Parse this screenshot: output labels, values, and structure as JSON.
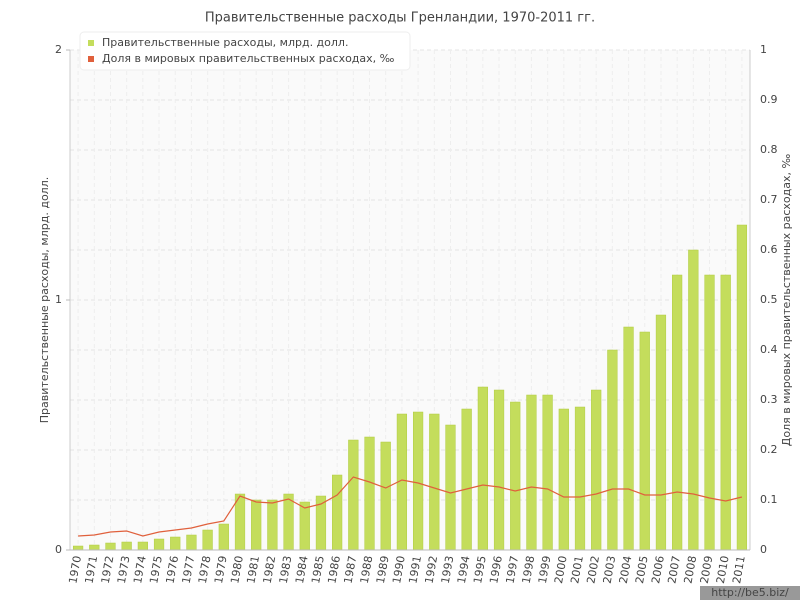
{
  "chart_data": {
    "type": "bar-line",
    "title": "Правительственные расходы Гренландии, 1970-2011 гг.",
    "y_label": "Правительственные расходы, млрд. долл.",
    "y2_label": "Доля в мировых правительственных расходах, ‰",
    "watermark": "http://be5.biz/",
    "categories": [
      "1970",
      "1971",
      "1972",
      "1973",
      "1974",
      "1975",
      "1976",
      "1977",
      "1978",
      "1979",
      "1980",
      "1981",
      "1982",
      "1983",
      "1984",
      "1985",
      "1986",
      "1987",
      "1988",
      "1989",
      "1990",
      "1991",
      "1992",
      "1993",
      "1994",
      "1995",
      "1996",
      "1997",
      "1998",
      "1999",
      "2000",
      "2001",
      "2002",
      "2003",
      "2004",
      "2005",
      "2006",
      "2007",
      "2008",
      "2009",
      "2010",
      "2011"
    ],
    "series": [
      {
        "name": "Правительственные расходы, млрд. долл.",
        "color": "#c4dd5c",
        "kind": "bar",
        "values": [
          0.016,
          0.02,
          0.028,
          0.032,
          0.032,
          0.044,
          0.052,
          0.06,
          0.08,
          0.104,
          0.224,
          0.2,
          0.2,
          0.224,
          0.192,
          0.216,
          0.3,
          0.44,
          0.452,
          0.432,
          0.544,
          0.552,
          0.544,
          0.5,
          0.564,
          0.652,
          0.64,
          0.592,
          0.62,
          0.62,
          0.564,
          0.572,
          0.64,
          0.8,
          0.892,
          0.872,
          0.94,
          1.1,
          1.2,
          1.1,
          1.1,
          1.3
        ]
      },
      {
        "name": "Доля в мировых правительственных расходах, ‰",
        "color": "#e0603c",
        "kind": "line",
        "axis": "y2",
        "values": [
          0.028,
          0.03,
          0.036,
          0.038,
          0.028,
          0.036,
          0.04,
          0.044,
          0.052,
          0.058,
          0.108,
          0.096,
          0.094,
          0.102,
          0.084,
          0.092,
          0.11,
          0.146,
          0.136,
          0.124,
          0.14,
          0.134,
          0.124,
          0.114,
          0.122,
          0.13,
          0.126,
          0.118,
          0.126,
          0.122,
          0.106,
          0.106,
          0.112,
          0.122,
          0.122,
          0.11,
          0.11,
          0.116,
          0.112,
          0.104,
          0.098,
          0.106
        ]
      }
    ],
    "ylim": [
      0,
      2
    ],
    "yticks": [
      0,
      1,
      2
    ],
    "y2lim": [
      0,
      1
    ],
    "y2ticks": [
      0,
      0.1,
      0.2,
      0.3,
      0.4,
      0.5,
      0.6,
      0.7,
      0.8,
      0.9,
      1
    ],
    "grid": true,
    "legend": "top-left"
  }
}
